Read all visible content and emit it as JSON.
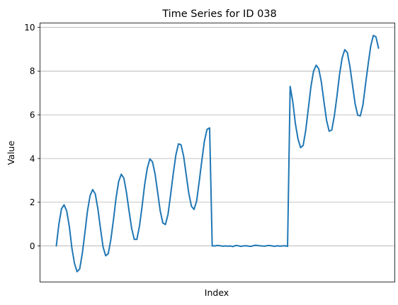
{
  "chart_data": {
    "type": "line",
    "title": "Time Series for ID 038",
    "xlabel": "Index",
    "ylabel": "Value",
    "ylim": [
      -1.65,
      10.2
    ],
    "yticks": [
      0,
      2,
      4,
      6,
      8,
      10
    ],
    "grid": "y-major",
    "xticks_visible": false,
    "series": [
      {
        "color": "#1f77b4",
        "values": [
          0.0,
          1.0,
          1.7,
          1.88,
          1.6,
          0.9,
          -0.1,
          -0.8,
          -1.18,
          -1.05,
          -0.35,
          0.6,
          1.6,
          2.3,
          2.58,
          2.38,
          1.7,
          0.8,
          -0.05,
          -0.45,
          -0.35,
          0.3,
          1.2,
          2.2,
          2.95,
          3.28,
          3.1,
          2.45,
          1.6,
          0.8,
          0.3,
          0.3,
          0.9,
          1.8,
          2.8,
          3.55,
          3.98,
          3.85,
          3.3,
          2.45,
          1.6,
          1.05,
          0.98,
          1.45,
          2.35,
          3.3,
          4.15,
          4.67,
          4.63,
          4.1,
          3.25,
          2.4,
          1.82,
          1.67,
          2.05,
          2.95,
          3.9,
          4.8,
          5.33,
          5.4,
          0.0,
          0.0,
          0.02,
          0.01,
          -0.01,
          0.0,
          -0.01,
          0.0,
          -0.03,
          0.02,
          0.01,
          -0.02,
          0.0,
          0.01,
          -0.01,
          -0.02,
          0.02,
          0.03,
          0.01,
          0.0,
          -0.01,
          0.01,
          0.02,
          0.0,
          -0.02,
          0.01,
          -0.01,
          0.0,
          0.01,
          -0.02,
          7.3,
          6.6,
          5.6,
          4.9,
          4.5,
          4.6,
          5.3,
          6.3,
          7.3,
          8.0,
          8.27,
          8.1,
          7.5,
          6.6,
          5.75,
          5.25,
          5.3,
          5.95,
          6.85,
          7.85,
          8.6,
          8.98,
          8.85,
          8.2,
          7.35,
          6.5,
          5.98,
          5.95,
          6.45,
          7.4,
          8.3,
          9.15,
          9.63,
          9.57,
          9.05
        ]
      }
    ]
  }
}
